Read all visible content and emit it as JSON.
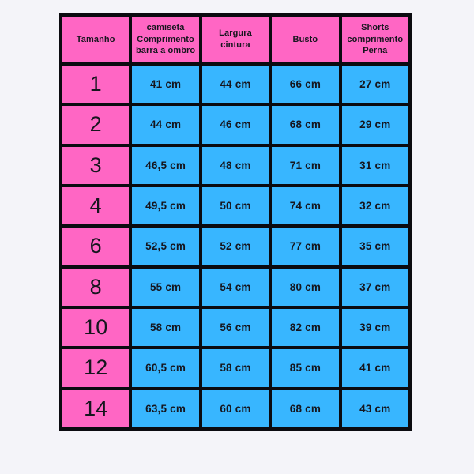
{
  "colors": {
    "pink": "#ff66c4",
    "blue": "#38b6ff",
    "grid_line": "#0b0b10",
    "background": "#f4f4f9",
    "text": "#16161e"
  },
  "chart_data": {
    "type": "table",
    "title": "",
    "layout": {
      "grid": "on",
      "header_column_color": "pink",
      "value_cell_color": "blue"
    },
    "columns": [
      "Tamanho",
      "camiseta\nComprimento\nbarra a ombro",
      "Largura\ncintura",
      "Busto",
      "Shorts\ncomprimento\nPerna"
    ],
    "rows": [
      {
        "size": "1",
        "values": [
          "41 cm",
          "44 cm",
          "66 cm",
          "27 cm"
        ]
      },
      {
        "size": "2",
        "values": [
          "44 cm",
          "46 cm",
          "68 cm",
          "29 cm"
        ]
      },
      {
        "size": "3",
        "values": [
          "46,5 cm",
          "48 cm",
          "71 cm",
          "31 cm"
        ]
      },
      {
        "size": "4",
        "values": [
          "49,5 cm",
          "50 cm",
          "74 cm",
          "32 cm"
        ]
      },
      {
        "size": "6",
        "values": [
          "52,5 cm",
          "52 cm",
          "77 cm",
          "35 cm"
        ]
      },
      {
        "size": "8",
        "values": [
          "55 cm",
          "54 cm",
          "80 cm",
          "37 cm"
        ]
      },
      {
        "size": "10",
        "values": [
          "58 cm",
          "56 cm",
          "82 cm",
          "39 cm"
        ]
      },
      {
        "size": "12",
        "values": [
          "60,5 cm",
          "58 cm",
          "85 cm",
          "41 cm"
        ]
      },
      {
        "size": "14",
        "values": [
          "63,5 cm",
          "60 cm",
          "68 cm",
          "43 cm"
        ]
      }
    ]
  }
}
